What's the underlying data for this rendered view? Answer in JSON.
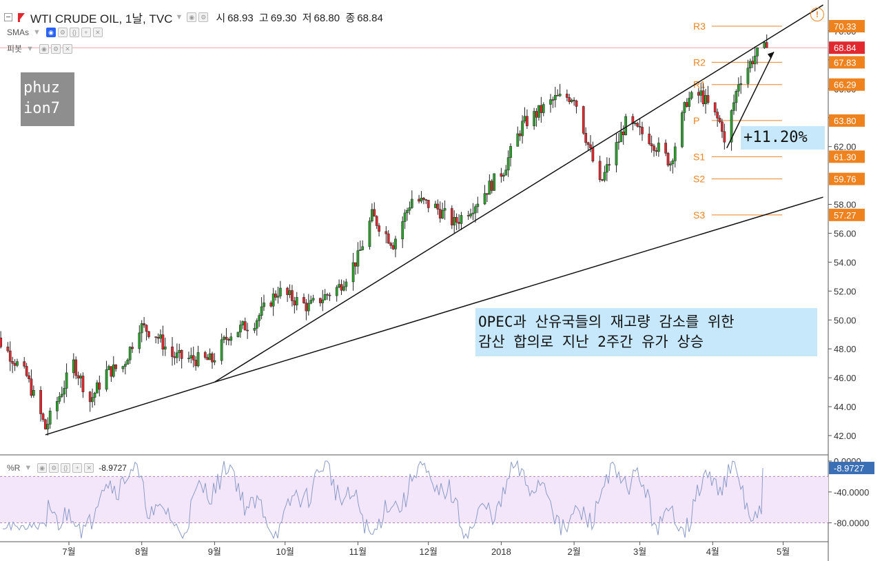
{
  "header": {
    "title": "WTI CRUDE OIL, 1날, TVC",
    "open_label": "시",
    "open": "68.93",
    "high_label": "고",
    "high": "69.30",
    "low_label": "저",
    "low": "68.80",
    "close_label": "종",
    "close": "68.84"
  },
  "legends": {
    "sma": "SMAs",
    "pivot": "피봇",
    "wr": "%R",
    "wr_value": "-8.9727"
  },
  "watermark": {
    "line1": "phuz",
    "line2": "ion7"
  },
  "annotations": {
    "percent": "+11.20%",
    "note_line1": "OPEC과 산유국들의 재고량 감소를 위한",
    "note_line2": "감산 합의로 지난 2주간 유가 상승"
  },
  "colors": {
    "up": "#2ca02c",
    "down": "#e0282e",
    "pivot": "#f0821e",
    "last_price": "#e0282e",
    "wr_band": "#f3e6fb",
    "wr_line": "#8a9bc8",
    "accent_blue": "#2962ff",
    "annotation_bg": "#c7e8fb"
  },
  "icons": [
    "collapse-icon",
    "symbol-flag-icon",
    "eye-icon",
    "gear-icon",
    "delete-icon",
    "alert-icon"
  ],
  "chart_data": [
    {
      "type": "candlestick",
      "title": "WTI CRUDE OIL, 1날, TVC",
      "ylim": [
        41.0,
        71.5
      ],
      "y_ticks": [
        "42.00",
        "44.00",
        "46.00",
        "48.00",
        "50.00",
        "52.00",
        "54.00",
        "56.00",
        "58.00",
        "62.00",
        "64.00",
        "66.00",
        "68.00",
        "70.00"
      ],
      "x_ticks": [
        {
          "label": "7월",
          "date": "2017-07-01"
        },
        {
          "label": "8월",
          "date": "2017-08-01"
        },
        {
          "label": "9월",
          "date": "2017-09-01"
        },
        {
          "label": "10월",
          "date": "2017-10-01"
        },
        {
          "label": "11월",
          "date": "2017-11-01"
        },
        {
          "label": "12월",
          "date": "2017-12-01"
        },
        {
          "label": "2018",
          "date": "2018-01-01"
        },
        {
          "label": "2월",
          "date": "2018-02-01"
        },
        {
          "label": "3월",
          "date": "2018-03-01"
        },
        {
          "label": "4월",
          "date": "2018-04-01"
        },
        {
          "label": "5월",
          "date": "2018-05-01"
        }
      ],
      "price_anchors": [
        [
          "2017-05-26",
          49.8
        ],
        [
          "2017-06-05",
          47.8
        ],
        [
          "2017-06-13",
          46.1
        ],
        [
          "2017-06-21",
          42.5
        ],
        [
          "2017-07-03",
          47.0
        ],
        [
          "2017-07-10",
          44.4
        ],
        [
          "2017-07-17",
          46.4
        ],
        [
          "2017-07-24",
          46.8
        ],
        [
          "2017-07-31",
          49.6
        ],
        [
          "2017-08-07",
          49.0
        ],
        [
          "2017-08-14",
          47.5
        ],
        [
          "2017-08-21",
          47.3
        ],
        [
          "2017-08-31",
          47.2
        ],
        [
          "2017-09-07",
          49.0
        ],
        [
          "2017-09-18",
          49.9
        ],
        [
          "2017-09-28",
          52.0
        ],
        [
          "2017-10-11",
          50.9
        ],
        [
          "2017-10-24",
          52.3
        ],
        [
          "2017-11-01",
          54.3
        ],
        [
          "2017-11-07",
          57.2
        ],
        [
          "2017-11-16",
          55.3
        ],
        [
          "2017-11-24",
          58.4
        ],
        [
          "2017-12-04",
          57.8
        ],
        [
          "2017-12-12",
          56.7
        ],
        [
          "2017-12-20",
          57.9
        ],
        [
          "2018-01-02",
          60.4
        ],
        [
          "2018-01-10",
          63.5
        ],
        [
          "2018-01-24",
          65.3
        ],
        [
          "2018-02-01",
          65.5
        ],
        [
          "2018-02-12",
          59.3
        ],
        [
          "2018-02-23",
          63.6
        ],
        [
          "2018-03-05",
          62.6
        ],
        [
          "2018-03-14",
          60.9
        ],
        [
          "2018-03-21",
          65.2
        ],
        [
          "2018-03-27",
          65.6
        ],
        [
          "2018-04-05",
          63.4
        ],
        [
          "2018-04-06",
          62.1
        ],
        [
          "2018-04-12",
          66.5
        ],
        [
          "2018-04-19",
          68.3
        ],
        [
          "2018-04-24",
          68.84
        ]
      ],
      "trendlines": [
        {
          "from": [
            "2017-06-21",
            42.05
          ],
          "to": [
            "2017-09-01",
            45.7
          ]
        },
        {
          "from": [
            "2017-09-01",
            45.7
          ],
          "to": [
            "2018-05-18",
            58.5
          ]
        },
        {
          "from": [
            "2017-09-01",
            45.7
          ],
          "to": [
            "2018-05-18",
            71.8
          ]
        },
        {
          "from": [
            "2018-04-07",
            61.9
          ],
          "to": [
            "2018-04-27",
            68.55
          ]
        }
      ],
      "pivots": [
        {
          "name": "R3",
          "value": "70.33"
        },
        {
          "name": "R2",
          "value": "67.83"
        },
        {
          "name": "R1",
          "value": "66.29"
        },
        {
          "name": "P",
          "value": "63.80"
        },
        {
          "name": "S1",
          "value": "61.30"
        },
        {
          "name": "S2",
          "value": "59.76"
        },
        {
          "name": "S3",
          "value": "57.27"
        }
      ],
      "last_price": "68.84"
    },
    {
      "type": "line",
      "name": "%R",
      "ylim": [
        -100,
        0
      ],
      "y_ticks": [
        "0.0000",
        "-40.0000",
        "-80.0000"
      ],
      "band": [
        -80,
        -20
      ],
      "last_value": "-8.9727"
    }
  ]
}
